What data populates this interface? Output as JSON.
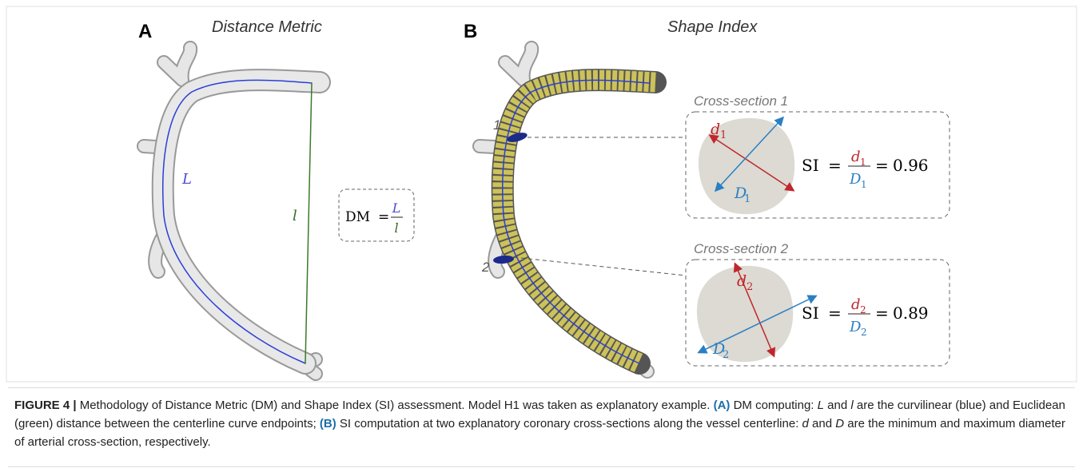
{
  "panel_a": {
    "letter": "A",
    "title": "Distance Metric",
    "curve_label": "L",
    "line_label": "l",
    "formula": {
      "lhs": "DM",
      "eq": "=",
      "num": "L",
      "den": "l"
    }
  },
  "panel_b": {
    "letter": "B",
    "title": "Shape Index",
    "marker_1": "1",
    "marker_2": "2",
    "sections": [
      {
        "title": "Cross-section 1",
        "d": "d",
        "D": "D",
        "sub": "1",
        "lhs": "SI",
        "eq": "=",
        "eq2": "=",
        "value": 0.96
      },
      {
        "title": "Cross-section 2",
        "d": "d",
        "D": "D",
        "sub": "2",
        "lhs": "SI",
        "eq": "=",
        "eq2": "=",
        "value": 0.89
      }
    ]
  },
  "caption": {
    "runs": [
      "FIGURE 4 |",
      " Methodology of Distance Metric (DM) and Shape Index (SI) assessment. Model H1 was taken as explanatory example. ",
      "(A)",
      " DM computing: ",
      "L",
      " and ",
      "l",
      " are the curvilinear (blue) and Euclidean (green) distance between the centerline curve endpoints; ",
      "(B)",
      " SI computation at two explanatory coronary cross-sections along the vessel centerline: ",
      "d",
      " and ",
      "D",
      " are the minimum and maximum diameter of arterial cross-section, respectively."
    ]
  }
}
